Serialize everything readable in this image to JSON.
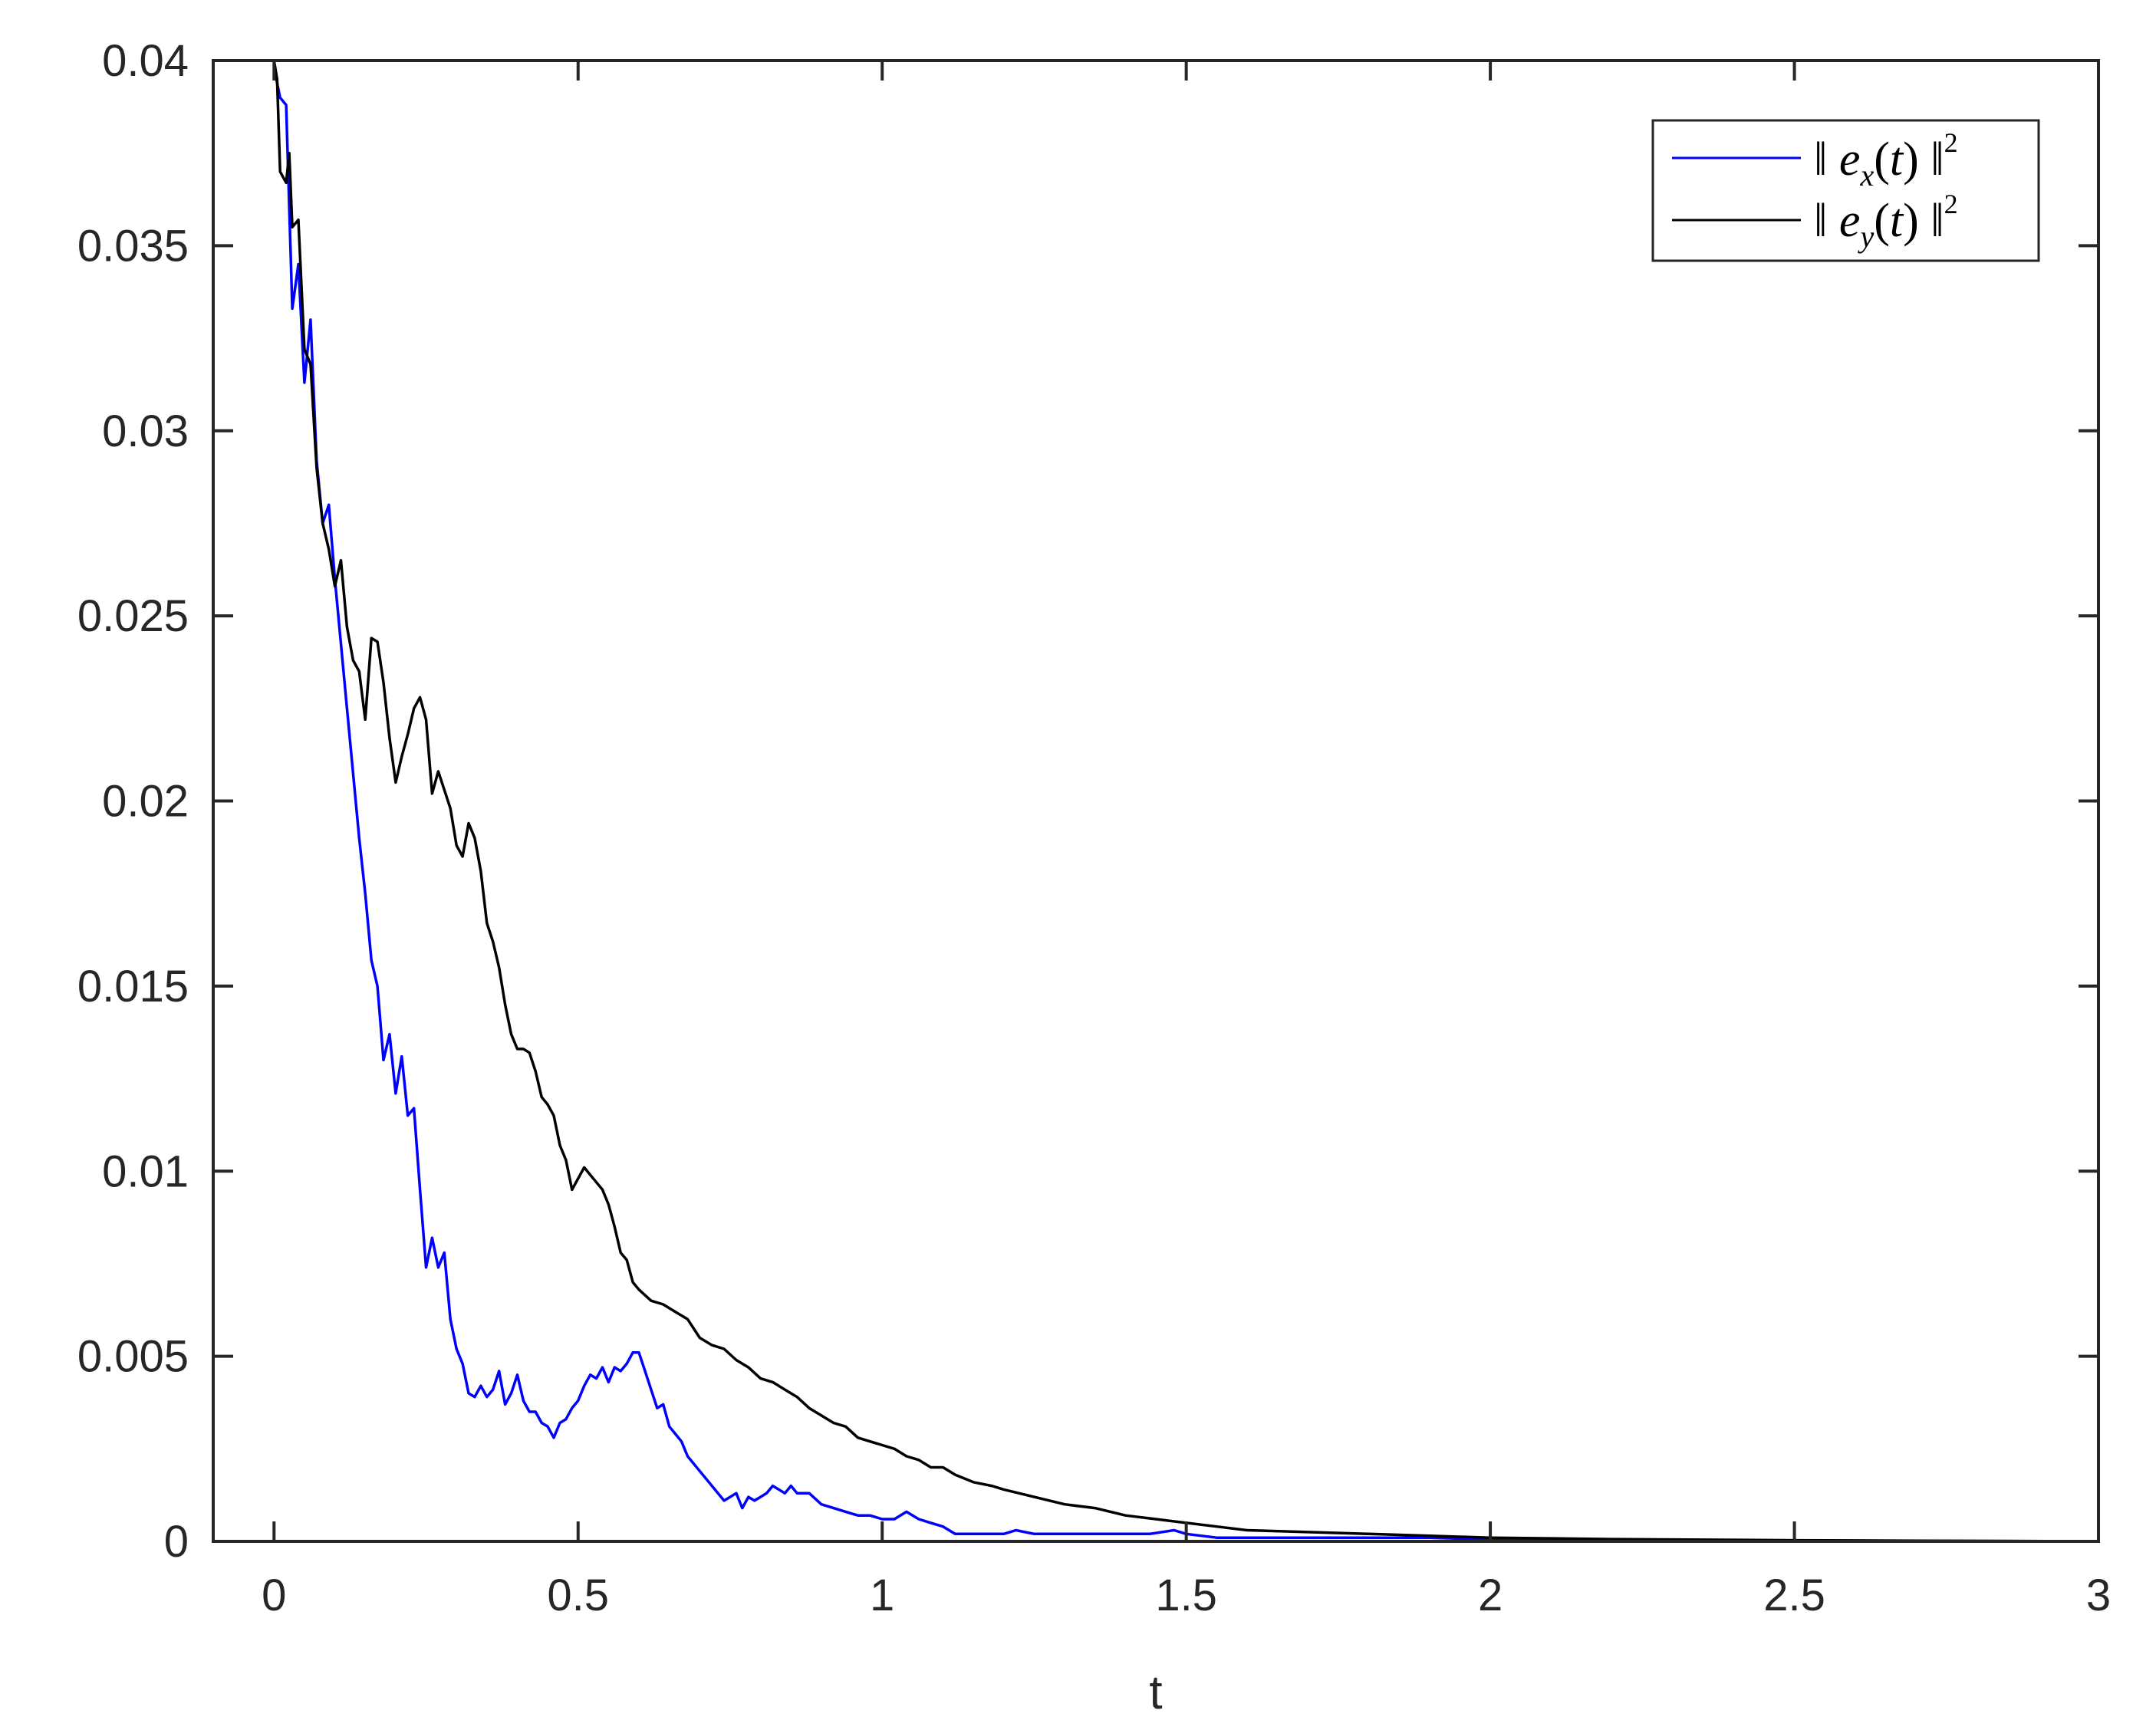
{
  "chart_data": {
    "type": "line",
    "title": "",
    "xlabel": "t",
    "ylabel": "",
    "xlim": [
      -0.1,
      3
    ],
    "ylim": [
      0,
      0.04
    ],
    "xticks": [
      0,
      0.5,
      1,
      1.5,
      2,
      2.5,
      3
    ],
    "xtick_labels": [
      "0",
      "0.5",
      "1",
      "1.5",
      "2",
      "2.5",
      "3"
    ],
    "yticks": [
      0,
      0.005,
      0.01,
      0.015,
      0.02,
      0.025,
      0.03,
      0.035,
      0.04
    ],
    "ytick_labels": [
      "0",
      "0.005",
      "0.01",
      "0.015",
      "0.02",
      "0.025",
      "0.03",
      "0.035",
      "0.04"
    ],
    "grid": false,
    "legend_position": "top-right",
    "series": [
      {
        "name": "ex",
        "color": "#0000ff",
        "x": [
          0,
          0.01,
          0.02,
          0.03,
          0.04,
          0.05,
          0.06,
          0.07,
          0.08,
          0.09,
          0.1,
          0.12,
          0.14,
          0.15,
          0.16,
          0.17,
          0.18,
          0.19,
          0.2,
          0.21,
          0.22,
          0.23,
          0.24,
          0.25,
          0.26,
          0.27,
          0.28,
          0.29,
          0.3,
          0.31,
          0.32,
          0.33,
          0.34,
          0.35,
          0.36,
          0.37,
          0.38,
          0.39,
          0.4,
          0.41,
          0.42,
          0.43,
          0.44,
          0.45,
          0.46,
          0.47,
          0.48,
          0.49,
          0.5,
          0.51,
          0.52,
          0.53,
          0.54,
          0.55,
          0.56,
          0.57,
          0.58,
          0.59,
          0.6,
          0.61,
          0.62,
          0.63,
          0.64,
          0.65,
          0.66,
          0.67,
          0.68,
          0.7,
          0.72,
          0.74,
          0.75,
          0.76,
          0.77,
          0.78,
          0.79,
          0.8,
          0.81,
          0.82,
          0.83,
          0.84,
          0.85,
          0.86,
          0.88,
          0.9,
          0.92,
          0.94,
          0.96,
          0.98,
          1.0,
          1.02,
          1.04,
          1.06,
          1.08,
          1.1,
          1.12,
          1.15,
          1.18,
          1.2,
          1.22,
          1.25,
          1.28,
          1.3,
          1.33,
          1.36,
          1.4,
          1.44,
          1.48,
          1.5,
          1.55,
          1.6,
          1.7,
          1.8,
          1.9,
          2.0,
          2.2,
          2.5,
          2.8,
          3.0
        ],
        "y": [
          0.0398,
          0.039,
          0.0388,
          0.0333,
          0.0345,
          0.0313,
          0.033,
          0.0292,
          0.0275,
          0.028,
          0.026,
          0.0225,
          0.019,
          0.0175,
          0.0157,
          0.015,
          0.013,
          0.0137,
          0.0121,
          0.0131,
          0.0115,
          0.0117,
          0.0095,
          0.0074,
          0.0082,
          0.0074,
          0.0078,
          0.006,
          0.0052,
          0.0048,
          0.004,
          0.0039,
          0.0042,
          0.0039,
          0.0041,
          0.0046,
          0.0037,
          0.004,
          0.0045,
          0.0038,
          0.0035,
          0.0035,
          0.0032,
          0.0031,
          0.0028,
          0.0032,
          0.0033,
          0.0036,
          0.0038,
          0.0042,
          0.0045,
          0.0044,
          0.0047,
          0.0043,
          0.0047,
          0.0046,
          0.0048,
          0.0051,
          0.0051,
          0.0046,
          0.0041,
          0.0036,
          0.0037,
          0.0031,
          0.0029,
          0.0027,
          0.0023,
          0.0019,
          0.0015,
          0.0011,
          0.0012,
          0.0013,
          0.0009,
          0.0012,
          0.0011,
          0.0012,
          0.0013,
          0.0015,
          0.0014,
          0.0013,
          0.0015,
          0.0013,
          0.0013,
          0.001,
          0.0009,
          0.0008,
          0.0007,
          0.0007,
          0.0006,
          0.0006,
          0.0008,
          0.0006,
          0.0005,
          0.0004,
          0.0002,
          0.0002,
          0.0002,
          0.0002,
          0.0003,
          0.0002,
          0.0002,
          0.0002,
          0.0002,
          0.0002,
          0.0002,
          0.0002,
          0.0003,
          0.0002,
          0.0001,
          0.0001,
          0.0001,
          0.0001,
          0.0001,
          5e-05,
          3e-05,
          2e-05,
          1e-05,
          0.0
        ]
      },
      {
        "name": "ey",
        "color": "#000000",
        "x": [
          0,
          0.005,
          0.01,
          0.02,
          0.025,
          0.03,
          0.04,
          0.05,
          0.06,
          0.07,
          0.08,
          0.09,
          0.1,
          0.11,
          0.12,
          0.13,
          0.14,
          0.15,
          0.16,
          0.17,
          0.18,
          0.19,
          0.2,
          0.21,
          0.22,
          0.23,
          0.24,
          0.25,
          0.26,
          0.27,
          0.28,
          0.29,
          0.3,
          0.31,
          0.32,
          0.33,
          0.34,
          0.35,
          0.36,
          0.37,
          0.38,
          0.39,
          0.4,
          0.41,
          0.42,
          0.43,
          0.44,
          0.45,
          0.46,
          0.47,
          0.48,
          0.49,
          0.5,
          0.51,
          0.52,
          0.53,
          0.54,
          0.55,
          0.56,
          0.57,
          0.58,
          0.59,
          0.6,
          0.62,
          0.64,
          0.66,
          0.68,
          0.7,
          0.72,
          0.74,
          0.76,
          0.78,
          0.8,
          0.82,
          0.84,
          0.86,
          0.88,
          0.9,
          0.92,
          0.94,
          0.96,
          0.98,
          1.0,
          1.02,
          1.04,
          1.06,
          1.08,
          1.1,
          1.12,
          1.15,
          1.18,
          1.2,
          1.25,
          1.3,
          1.35,
          1.4,
          1.45,
          1.5,
          1.55,
          1.6,
          1.7,
          1.8,
          1.9,
          2.0,
          2.2,
          2.5,
          2.8,
          3.0
        ],
        "y": [
          0.04,
          0.0395,
          0.037,
          0.0367,
          0.0375,
          0.0355,
          0.0357,
          0.0322,
          0.0318,
          0.029,
          0.0275,
          0.0268,
          0.0258,
          0.0265,
          0.0247,
          0.0238,
          0.0235,
          0.0222,
          0.0244,
          0.0243,
          0.0232,
          0.0217,
          0.0205,
          0.0212,
          0.0218,
          0.0225,
          0.0228,
          0.0222,
          0.0202,
          0.0208,
          0.0203,
          0.0198,
          0.0188,
          0.0185,
          0.0194,
          0.019,
          0.0181,
          0.0167,
          0.0162,
          0.0155,
          0.0145,
          0.0137,
          0.0133,
          0.0133,
          0.0132,
          0.0127,
          0.012,
          0.0118,
          0.0115,
          0.0107,
          0.0103,
          0.0095,
          0.0098,
          0.0101,
          0.0099,
          0.0097,
          0.0095,
          0.0091,
          0.0085,
          0.0078,
          0.0076,
          0.007,
          0.0068,
          0.0065,
          0.0064,
          0.0062,
          0.006,
          0.0055,
          0.0053,
          0.0052,
          0.0049,
          0.0047,
          0.0044,
          0.0043,
          0.0041,
          0.0039,
          0.0036,
          0.0034,
          0.0032,
          0.0031,
          0.0028,
          0.0027,
          0.0026,
          0.0025,
          0.0023,
          0.0022,
          0.002,
          0.002,
          0.0018,
          0.0016,
          0.0015,
          0.0014,
          0.0012,
          0.001,
          0.0009,
          0.0007,
          0.0006,
          0.0005,
          0.0004,
          0.0003,
          0.00025,
          0.0002,
          0.00015,
          0.0001,
          6e-05,
          3e-05,
          1e-05,
          0.0
        ]
      }
    ]
  }
}
